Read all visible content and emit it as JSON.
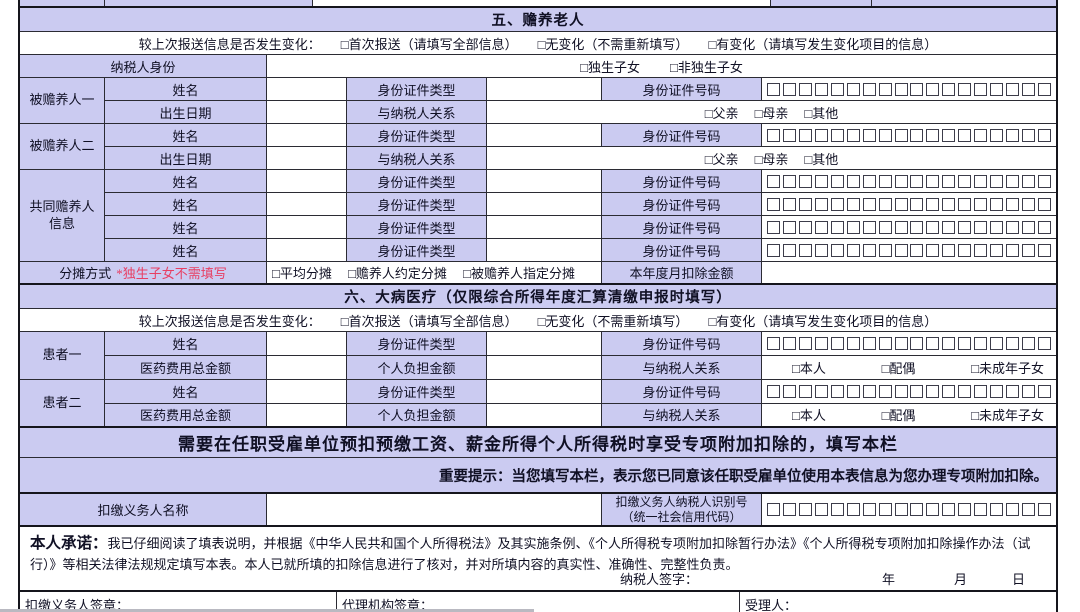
{
  "colors": {
    "lavender": "#cbcbf1",
    "grid_line": "#2b2b33",
    "note_red": "#e83e62"
  },
  "id_box_count": 18,
  "section5": {
    "title": "五、赡养老人",
    "change": {
      "prompt": "较上次报送信息是否发生变化：",
      "first": "□首次报送（请填写全部信息）",
      "none": "□无变化（不需重新填写）",
      "changed": "□有变化（请填写发生变化项目的信息）"
    },
    "identity": {
      "label": "纳税人身份",
      "only_child": "□独生子女",
      "not_only_child": "□非独生子女"
    },
    "labels": {
      "name": "姓名",
      "id_type": "身份证件类型",
      "id_no": "身份证件号码",
      "birth": "出生日期",
      "relation": "与纳税人关系"
    },
    "elder1_group": "被赡养人一",
    "elder2_group": "被赡养人二",
    "joint_group_line1": "共同赡养人",
    "joint_group_line2": "信息",
    "relation_options": {
      "father": "□父亲",
      "mother": "□母亲",
      "other": "□其他"
    },
    "apportion": {
      "label": "分摊方式",
      "note": "*独生子女不需填写",
      "avg": "□平均分摊",
      "agreed": "□赡养人约定分摊",
      "designated": "□被赡养人指定分摊",
      "amount_label": "本年度月扣除金额"
    }
  },
  "section6": {
    "title": "六、大病医疗（仅限综合所得年度汇算清缴申报时填写）",
    "change": {
      "prompt": "较上次报送信息是否发生变化：",
      "first": "□首次报送（请填写全部信息）",
      "none": "□无变化（不需重新填写）",
      "changed": "□有变化（请填写发生变化项目的信息）"
    },
    "patient1_group": "患者一",
    "patient2_group": "患者二",
    "labels": {
      "name": "姓名",
      "id_type": "身份证件类型",
      "id_no": "身份证件号码",
      "fee": "医药费用总金额",
      "self_pay": "个人负担金额",
      "relation": "与纳税人关系"
    },
    "relation_options": {
      "self": "□本人",
      "spouse": "□配偶",
      "minor_child": "□未成年子女"
    }
  },
  "employer": {
    "band": "需要在任职受雇单位预扣预缴工资、薪金所得个人所得税时享受专项附加扣除的，填写本栏",
    "notice_bold": "重要提示：",
    "notice_text": "当您填写本栏，表示您已同意该任职受雇单位使用本表信息为您办理专项附加扣除。",
    "agent_name_label": "扣缴义务人名称",
    "agent_id_line1": "扣缴义务人纳税人识别号",
    "agent_id_line2": "（统一社会信用代码）"
  },
  "commitment": {
    "heading": "本人承诺：",
    "text": "我已仔细阅读了填表说明，并根据《中华人民共和国个人所得税法》及其实施条例、《个人所得税专项附加扣除暂行办法》《个人所得税专项附加扣除操作办法（试行）》等相关法律法规规定填写本表。本人已就所填的扣除信息进行了核对，并对所填内容的真实性、准确性、完整性负责。",
    "sign_label": "纳税人签字：",
    "year": "年",
    "month": "月",
    "day": "日"
  },
  "footer": {
    "withholding_sign": "扣缴义务人签章：",
    "agency_sign": "代理机构签章：",
    "acceptor": "受理人："
  }
}
